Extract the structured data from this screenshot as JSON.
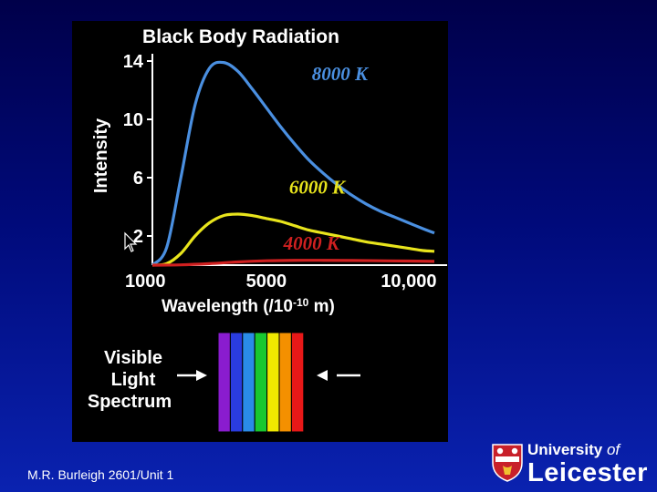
{
  "chart_data": {
    "type": "line",
    "title": "Black Body Radiation",
    "ylabel": "Intensity",
    "xlabel_main": "Wavelength (/10",
    "xlabel_sup": "-10",
    "xlabel_end": " m)",
    "xlim": [
      1000,
      10900
    ],
    "ylim": [
      0,
      14.5
    ],
    "x_ticks": [
      {
        "value": 1000,
        "label": "1000"
      },
      {
        "value": 5000,
        "label": "5000"
      },
      {
        "value": 10000,
        "label": "10,000"
      }
    ],
    "y_ticks": [
      {
        "value": 2,
        "label": "2"
      },
      {
        "value": 6,
        "label": "6"
      },
      {
        "value": 10,
        "label": "10"
      },
      {
        "value": 14,
        "label": "14"
      }
    ],
    "series": [
      {
        "name": "8000 K",
        "color": "#4a8fe0",
        "x": [
          1000,
          1500,
          2000,
          2500,
          3000,
          3500,
          4000,
          4500,
          5000,
          5500,
          6000,
          6500,
          7000,
          7500,
          8000,
          8500,
          9000,
          9500,
          10000,
          10500,
          10900
        ],
        "y": [
          0.0,
          1.2,
          6.0,
          11.0,
          13.5,
          13.9,
          13.3,
          12.1,
          10.8,
          9.5,
          8.3,
          7.2,
          6.3,
          5.5,
          4.8,
          4.2,
          3.7,
          3.3,
          2.9,
          2.5,
          2.2
        ]
      },
      {
        "name": "6000 K",
        "color": "#e8e41c",
        "x": [
          1000,
          1500,
          2000,
          2500,
          3000,
          3500,
          4000,
          4500,
          5000,
          5500,
          6000,
          6500,
          7000,
          7500,
          8000,
          8500,
          9000,
          9500,
          10000,
          10500,
          10900
        ],
        "y": [
          0.0,
          0.1,
          0.8,
          2.0,
          2.9,
          3.4,
          3.5,
          3.4,
          3.2,
          3.0,
          2.7,
          2.4,
          2.2,
          2.0,
          1.8,
          1.6,
          1.45,
          1.3,
          1.15,
          1.0,
          0.95
        ]
      },
      {
        "name": "4000 K",
        "color": "#d02020",
        "x": [
          1000,
          2000,
          3000,
          4000,
          5000,
          6000,
          7000,
          8000,
          9000,
          10000,
          10900
        ],
        "y": [
          0.0,
          0.02,
          0.1,
          0.22,
          0.3,
          0.33,
          0.33,
          0.32,
          0.3,
          0.28,
          0.26
        ]
      }
    ]
  },
  "spectrum": {
    "label_lines": [
      "Visible",
      "Light",
      "Spectrum"
    ],
    "colors": [
      "#8a1ccf",
      "#2a3ce0",
      "#2a8ce8",
      "#18c830",
      "#f0e800",
      "#f49000",
      "#e81818"
    ]
  },
  "footer": {
    "text": "M.R. Burleigh 2601/Unit 1"
  },
  "logo": {
    "line1_a": "University ",
    "line1_b": "of",
    "line2": "Leicester"
  }
}
